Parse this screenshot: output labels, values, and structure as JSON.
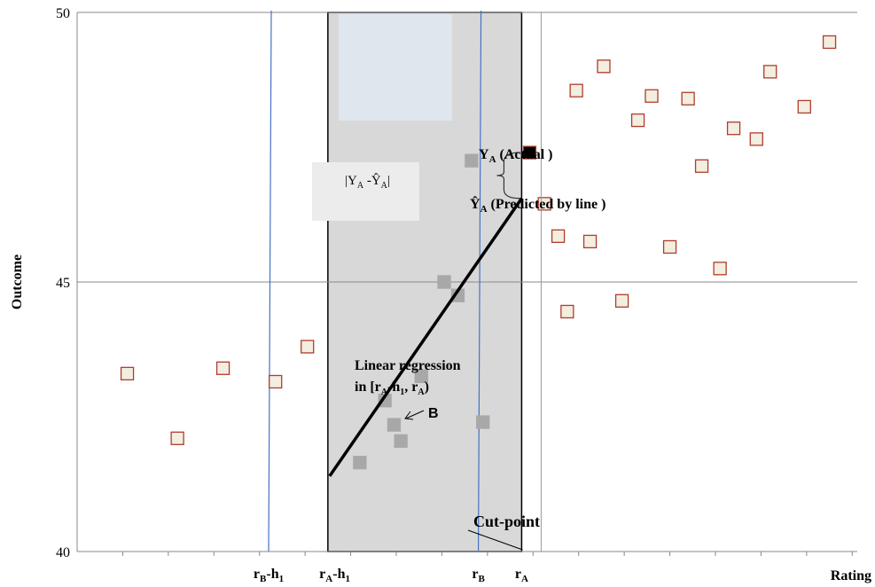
{
  "chart_data": {
    "type": "scatter",
    "title": "",
    "xlabel": "Rating",
    "ylabel": "Outcome",
    "ylim": [
      40,
      50
    ],
    "yticks": [
      "40",
      "45",
      "50"
    ],
    "grid": "horizontal",
    "series": [
      {
        "points": [
          {
            "x": 1.1,
            "y": 43.3
          },
          {
            "x": 2.2,
            "y": 42.1
          },
          {
            "x": 3.2,
            "y": 43.4
          },
          {
            "x": 4.35,
            "y": 43.15
          },
          {
            "x": 5.05,
            "y": 43.8
          },
          {
            "x": 6.2,
            "y": 41.65
          },
          {
            "x": 6.75,
            "y": 42.8
          },
          {
            "x": 6.95,
            "y": 42.35
          },
          {
            "x": 7.1,
            "y": 42.05
          },
          {
            "x": 7.55,
            "y": 43.25
          },
          {
            "x": 8.05,
            "y": 45.0
          },
          {
            "x": 8.35,
            "y": 44.75
          },
          {
            "x": 8.65,
            "y": 47.25
          },
          {
            "x": 8.9,
            "y": 42.4
          },
          {
            "x": 9.45,
            "y": 47.4
          },
          {
            "x": 10.25,
            "y": 46.45
          },
          {
            "x": 10.55,
            "y": 45.85
          },
          {
            "x": 10.75,
            "y": 44.45
          },
          {
            "x": 10.95,
            "y": 48.55
          },
          {
            "x": 11.25,
            "y": 45.75
          },
          {
            "x": 11.55,
            "y": 49.0
          },
          {
            "x": 11.95,
            "y": 44.65
          },
          {
            "x": 12.3,
            "y": 48.0
          },
          {
            "x": 12.6,
            "y": 48.45
          },
          {
            "x": 13.0,
            "y": 45.65
          },
          {
            "x": 13.4,
            "y": 48.4
          },
          {
            "x": 13.7,
            "y": 47.15
          },
          {
            "x": 14.1,
            "y": 45.25
          },
          {
            "x": 14.4,
            "y": 47.85
          },
          {
            "x": 14.9,
            "y": 47.65
          },
          {
            "x": 15.2,
            "y": 48.9
          },
          {
            "x": 15.95,
            "y": 48.25
          },
          {
            "x": 16.5,
            "y": 49.45
          }
        ]
      }
    ],
    "regression_line": {
      "x": [
        5.5,
        9.75
      ],
      "y": [
        41.4,
        46.55
      ]
    },
    "cut_point_x": 9.75,
    "window_x": [
      5.5,
      9.75
    ],
    "x_markers": [
      {
        "label": "r_B-h_1",
        "base": "r",
        "sub": "B",
        "suffix": "-h",
        "sub2": "1",
        "x": 4.2,
        "line": true
      },
      {
        "label": "r_A-h_1",
        "base": "r",
        "sub": "A",
        "suffix": "-h",
        "sub2": "1",
        "x": 5.65,
        "line": false
      },
      {
        "label": "r_B",
        "base": "r",
        "sub": "B",
        "suffix": "",
        "sub2": "",
        "x": 8.8,
        "line": true
      },
      {
        "label": "r_A",
        "base": "r",
        "sub": "A",
        "suffix": "",
        "sub2": "",
        "x": 9.75,
        "line": false
      }
    ]
  },
  "labels": {
    "cut_point": "Cut-point",
    "point_b": "B",
    "ya_actual_main": "Y",
    "ya_actual_sub": "A",
    "ya_actual_suffix": " (Actual )",
    "ya_pred_main": "Ŷ",
    "ya_pred_sub": "A",
    "ya_pred_suffix": " (Predicted by line )",
    "gap_open": "|Y",
    "gap_sub1": "A",
    "gap_mid": " -Ŷ",
    "gap_sub2": "A",
    "gap_close": "|",
    "regression_line1": "Linear regression",
    "regression_line2_a": "in [r",
    "regression_line2_sub1": "A",
    "regression_line2_b": "-h",
    "regression_line2_sub2": "1",
    "regression_line2_c": ", r",
    "regression_line2_sub3": "A",
    "regression_line2_d": ")"
  },
  "colors": {
    "window_fill": "#d8d8d8",
    "window_highlight": "#dfe6ee",
    "gap_box": "#ececec",
    "marker_fill": "#f2eee0",
    "marker_edge": "#b03c2e",
    "inside_marker_fill": "#a8a8a8",
    "inside_marker_edge": "#a8a8a8",
    "actual_marker_fill": "#000000",
    "actual_marker_edge": "#b03c2e",
    "vertical_line": "#4472c4",
    "grid": "#8a8a8a",
    "regression": "#000000"
  }
}
